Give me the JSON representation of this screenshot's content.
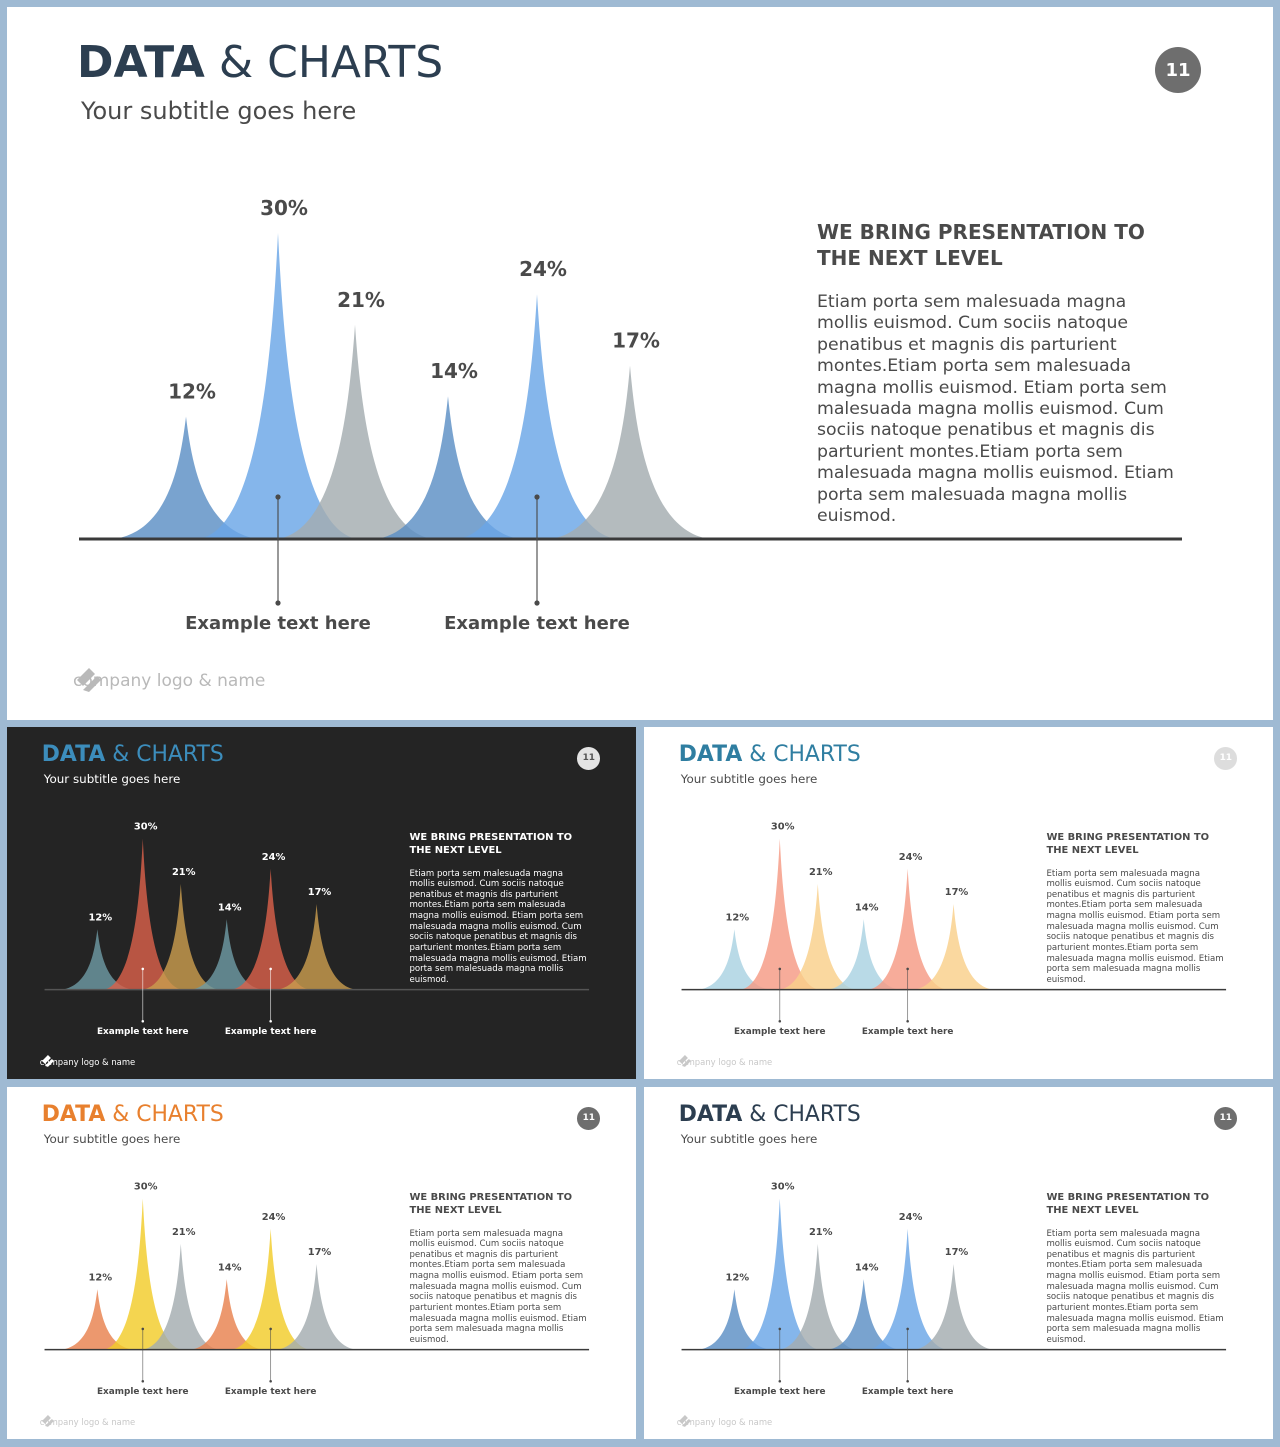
{
  "slide": {
    "title_bold": "DATA",
    "title_rest": "& CHARTS",
    "subtitle": "Your subtitle goes here",
    "page_number": "11",
    "heading": "WE BRING PRESENTATION TO THE NEXT LEVEL",
    "body": "Etiam porta sem malesuada magna mollis euismod. Cum sociis natoque penatibus et magnis dis parturient montes.Etiam porta sem malesuada magna mollis euismod. Etiam porta sem malesuada magna mollis euismod. Cum sociis natoque penatibus et magnis dis parturient montes.Etiam porta sem malesuada magna mollis euismod. Etiam porta sem malesuada magna mollis euismod.",
    "callouts": [
      "Example text here",
      "Example text here"
    ],
    "logo_text": "company logo & name"
  },
  "chart_data": {
    "type": "area",
    "values": [
      12,
      30,
      21,
      14,
      24,
      17
    ],
    "labels": [
      "12%",
      "30%",
      "21%",
      "14%",
      "24%",
      "17%"
    ]
  },
  "themes": [
    {
      "name": "main",
      "bg": "#ffffff",
      "title": "#2c3e50",
      "subtitle": "#4a4a4a",
      "badge_bg": "#6e6e6e",
      "badge_fg": "#ffffff",
      "text": "#4a4a4a",
      "baseline": "#3a3a3a",
      "logo": "#b9b9b9",
      "peaks": [
        "#5b8fc4",
        "#6aa6e6",
        "#a3acb0",
        "#5b8fc4",
        "#6aa6e6",
        "#a3acb0"
      ]
    },
    {
      "name": "dark",
      "bg": "#242424",
      "title": "#3c8dbc",
      "subtitle": "#ffffff",
      "badge_bg": "#e3e3e3",
      "badge_fg": "#555555",
      "text": "#ffffff",
      "baseline": "#555555",
      "logo": "#ffffff",
      "peaks": [
        "#6e9aa4",
        "#d9604a",
        "#c99c4e",
        "#6e9aa4",
        "#d9604a",
        "#c99c4e"
      ]
    },
    {
      "name": "pastel",
      "bg": "#ffffff",
      "title": "#2f7ea1",
      "subtitle": "#4a4a4a",
      "badge_bg": "#dddddd",
      "badge_fg": "#ffffff",
      "text": "#4a4a4a",
      "baseline": "#3a3a3a",
      "logo": "#c8c8c8",
      "peaks": [
        "#a9d2e2",
        "#f59a84",
        "#f9cf8a",
        "#a9d2e2",
        "#f59a84",
        "#f9cf8a"
      ]
    },
    {
      "name": "warm",
      "bg": "#ffffff",
      "title": "#e8802e",
      "subtitle": "#4a4a4a",
      "badge_bg": "#6e6e6e",
      "badge_fg": "#ffffff",
      "text": "#4a4a4a",
      "baseline": "#3a3a3a",
      "logo": "#c8c8c8",
      "peaks": [
        "#e8814e",
        "#f2cc2a",
        "#a3acb0",
        "#e8814e",
        "#f2cc2a",
        "#a3acb0"
      ]
    },
    {
      "name": "blue",
      "bg": "#ffffff",
      "title": "#2c3e50",
      "subtitle": "#4a4a4a",
      "badge_bg": "#6e6e6e",
      "badge_fg": "#ffffff",
      "text": "#4a4a4a",
      "baseline": "#3a3a3a",
      "logo": "#c8c8c8",
      "peaks": [
        "#5b8fc4",
        "#6aa6e6",
        "#a3acb0",
        "#5b8fc4",
        "#6aa6e6",
        "#a3acb0"
      ]
    }
  ]
}
